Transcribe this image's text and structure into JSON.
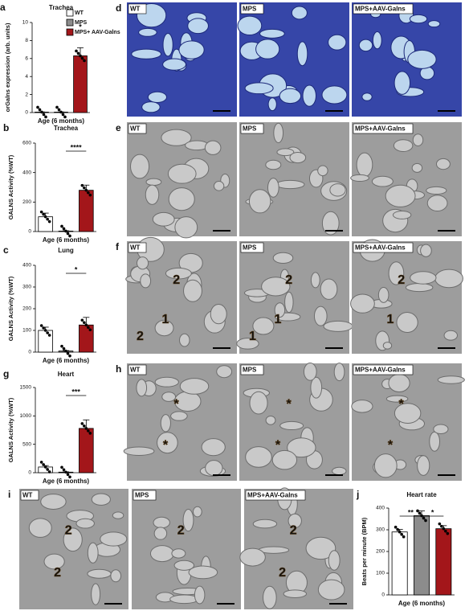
{
  "chart_data": [
    {
      "type": "bar",
      "panel": "a",
      "title": "Trachea",
      "ylabel": "orGalns expression (arb. units)",
      "xlabel": "Age (6 months)",
      "legend": [
        "WT",
        "MPS",
        "MPS+ AAV-Galns"
      ],
      "colors": [
        "#ffffff",
        "#8c8c8c",
        "#a3161a"
      ],
      "values": [
        0.05,
        0.05,
        6.3
      ],
      "errors": [
        0.02,
        0.02,
        0.9
      ],
      "ylim": [
        0,
        10
      ],
      "yticks": [
        0,
        2,
        4,
        6,
        8,
        10
      ],
      "annotations": [
        "*"
      ]
    },
    {
      "type": "bar",
      "panel": "b",
      "title": "Trachea",
      "ylabel": "GALNS Activity (%WT)",
      "xlabel": "Age (6 months)",
      "colors": [
        "#ffffff",
        "#8c8c8c",
        "#a3161a"
      ],
      "values": [
        100,
        3,
        280
      ],
      "errors": [
        25,
        2,
        35
      ],
      "ylim": [
        0,
        600
      ],
      "yticks": [
        0,
        200,
        400,
        600
      ],
      "annotations": [
        "****"
      ]
    },
    {
      "type": "bar",
      "panel": "c",
      "title": "Lung",
      "ylabel": "GALNS Activity (%WT)",
      "xlabel": "Age (6 months)",
      "colors": [
        "#ffffff",
        "#8c8c8c",
        "#a3161a"
      ],
      "values": [
        100,
        5,
        125
      ],
      "errors": [
        15,
        2,
        35
      ],
      "ylim": [
        0,
        400
      ],
      "yticks": [
        0,
        100,
        200,
        300,
        400
      ],
      "annotations": [
        "*"
      ]
    },
    {
      "type": "bar",
      "panel": "g",
      "title": "Heart",
      "ylabel": "GALNS Activity (%WT)",
      "xlabel": "Age (6 months)",
      "colors": [
        "#ffffff",
        "#8c8c8c",
        "#a3161a"
      ],
      "values": [
        100,
        10,
        780
      ],
      "errors": [
        25,
        5,
        150
      ],
      "ylim": [
        0,
        1500
      ],
      "yticks": [
        0,
        500,
        1000,
        1500
      ],
      "annotations": [
        "***"
      ]
    },
    {
      "type": "bar",
      "panel": "j",
      "title": "Heart rate",
      "ylabel": "Beats per minute (BPM)",
      "xlabel": "Age (6 months)",
      "colors": [
        "#ffffff",
        "#8c8c8c",
        "#a3161a"
      ],
      "values": [
        290,
        365,
        305
      ],
      "errors": [
        12,
        22,
        14
      ],
      "ylim": [
        0,
        400
      ],
      "yticks": [
        0,
        100,
        200,
        300,
        400
      ],
      "annotations": [
        "**",
        "*"
      ]
    }
  ],
  "image_panels": [
    {
      "panel": "d",
      "labels": [
        "WT",
        "MPS",
        "MPS+AAV-Galns"
      ],
      "overlays": [
        [],
        [],
        []
      ]
    },
    {
      "panel": "e",
      "labels": [
        "WT",
        "MPS",
        "MPS+AAV-Galns"
      ],
      "overlays": [
        [],
        [],
        []
      ]
    },
    {
      "panel": "f",
      "labels": [
        "WT",
        "MPS",
        "MPS+AAV-Galns"
      ],
      "overlays": [
        [
          "2",
          "1",
          "2"
        ],
        [
          "2",
          "1",
          "1"
        ],
        [
          "2",
          "1"
        ]
      ]
    },
    {
      "panel": "h",
      "labels": [
        "WT",
        "MPS",
        "MPS+AAV-Galns"
      ],
      "overlays": [
        [
          "*",
          "*"
        ],
        [
          "*",
          "*"
        ],
        [
          "*",
          "*"
        ]
      ]
    },
    {
      "panel": "i",
      "labels": [
        "WT",
        "MPS",
        "MPS+AAV-Galns"
      ],
      "overlays": [
        [
          "2",
          "2"
        ],
        [
          "2"
        ],
        [
          "2",
          "2"
        ]
      ]
    }
  ]
}
